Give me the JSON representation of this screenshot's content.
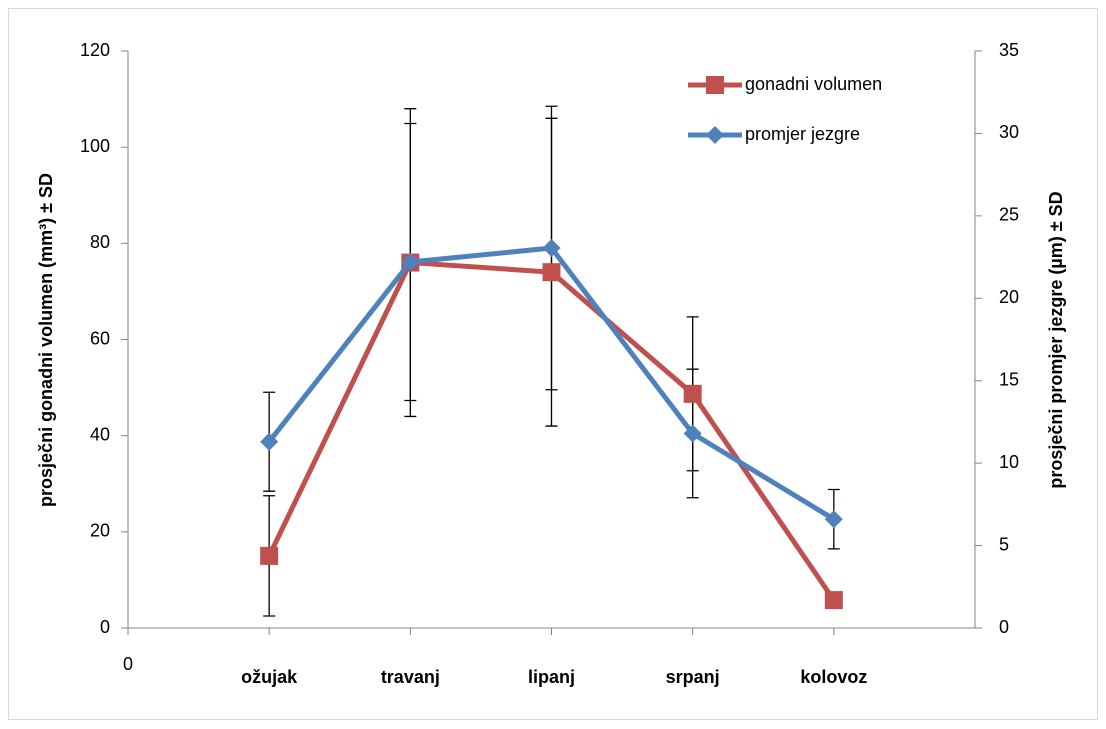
{
  "chart_data": {
    "type": "line",
    "ylabel": "prosječni gonadni volumen (mm³) ± SD",
    "y2label": "prosječni promjer jezgre (µm) ± SD",
    "x": [
      1,
      2,
      3,
      4,
      5
    ],
    "xlim": [
      0,
      6
    ],
    "xticks": [
      {
        "value": 0,
        "label": "0"
      },
      {
        "value": 1,
        "label": "ožujak"
      },
      {
        "value": 2,
        "label": "travanj"
      },
      {
        "value": 3,
        "label": "lipanj"
      },
      {
        "value": 4,
        "label": "srpanj"
      },
      {
        "value": 5,
        "label": "kolovoz"
      }
    ],
    "ylim": [
      0,
      120
    ],
    "yticks": [
      0,
      20,
      40,
      60,
      80,
      100,
      120
    ],
    "y2lim": [
      0,
      35
    ],
    "y2ticks": [
      0,
      5,
      10,
      15,
      20,
      25,
      30,
      35
    ],
    "grid": false,
    "legend": "upper right",
    "series": [
      {
        "name": "gonadni volumen",
        "color": "#c0504d",
        "marker": "square",
        "values": [
          15,
          76,
          74,
          48.7,
          5.8
        ],
        "errors": [
          12.5,
          32,
          32,
          16,
          1.5
        ]
      },
      {
        "name": "promjer jezgre",
        "color": "#4f81bd",
        "marker": "diamond",
        "axis": "y2",
        "values": [
          11.3,
          22.2,
          23.05,
          11.8,
          6.6
        ],
        "errors": [
          3,
          8.4,
          8.6,
          3.9,
          1.8
        ]
      }
    ]
  }
}
